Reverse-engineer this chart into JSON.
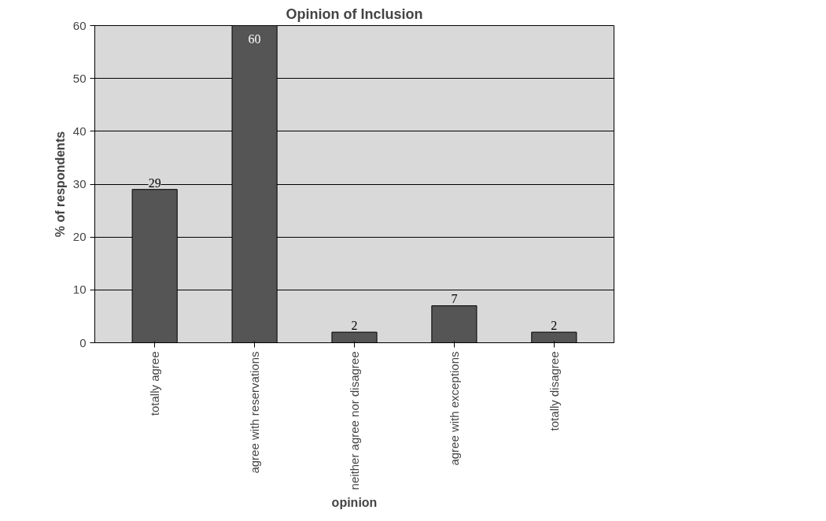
{
  "chart_data": {
    "type": "bar",
    "title": "Opinion of Inclusion",
    "xlabel": "opinion",
    "ylabel": "% of respondents",
    "categories": [
      "totally agree",
      "agree with reservations",
      "neither agree nor disagree",
      "agree with exceptions",
      "totally disagree"
    ],
    "values": [
      29,
      60,
      2,
      7,
      2
    ],
    "color": "#555555",
    "ylim": [
      0,
      60
    ],
    "yticks": [
      0,
      10,
      20,
      30,
      40,
      50,
      60
    ],
    "grid": "y",
    "data_labels": true
  }
}
